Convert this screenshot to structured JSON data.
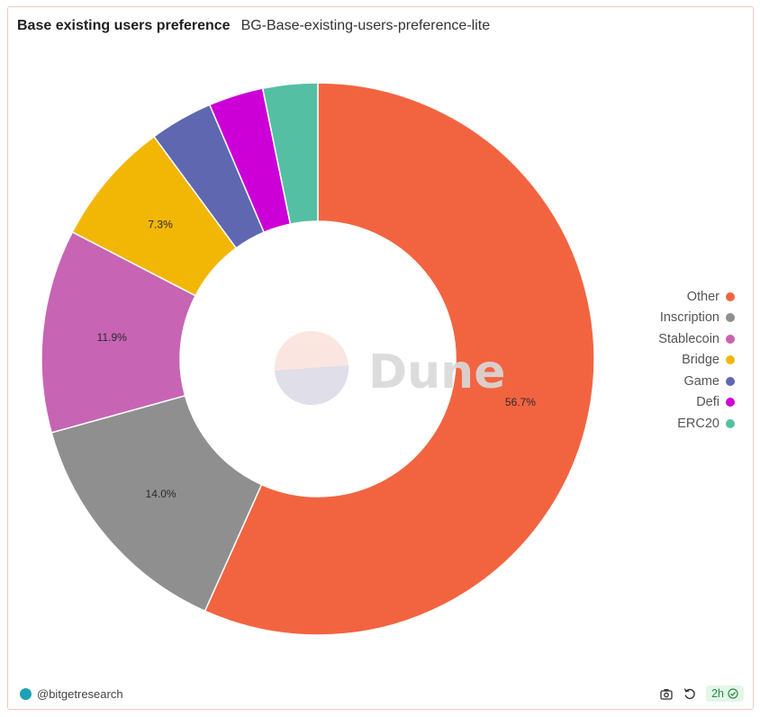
{
  "header": {
    "title": "Base existing users preference",
    "subtitle": "BG-Base-existing-users-preference-lite"
  },
  "watermark": {
    "text": "Dune"
  },
  "chart_data": {
    "type": "pie",
    "donut": true,
    "categories": [
      "Other",
      "Inscription",
      "Stablecoin",
      "Bridge",
      "Game",
      "Defi",
      "ERC20"
    ],
    "values": [
      56.7,
      14.0,
      11.9,
      7.3,
      3.7,
      3.2,
      3.2
    ],
    "labels": [
      "56.7%",
      "14.0%",
      "11.9%",
      "7.3%",
      "",
      "",
      ""
    ],
    "colors": [
      "#f26440",
      "#8f8f8f",
      "#c764b3",
      "#f2b705",
      "#5e67b0",
      "#cc00d6",
      "#55bfa3"
    ],
    "legend_position": "right"
  },
  "footer": {
    "author": "@bitgetresearch",
    "badge_label": "2h"
  },
  "icons": {
    "camera": "camera-icon",
    "refresh": "refresh-icon",
    "check": "check-circle-icon"
  }
}
